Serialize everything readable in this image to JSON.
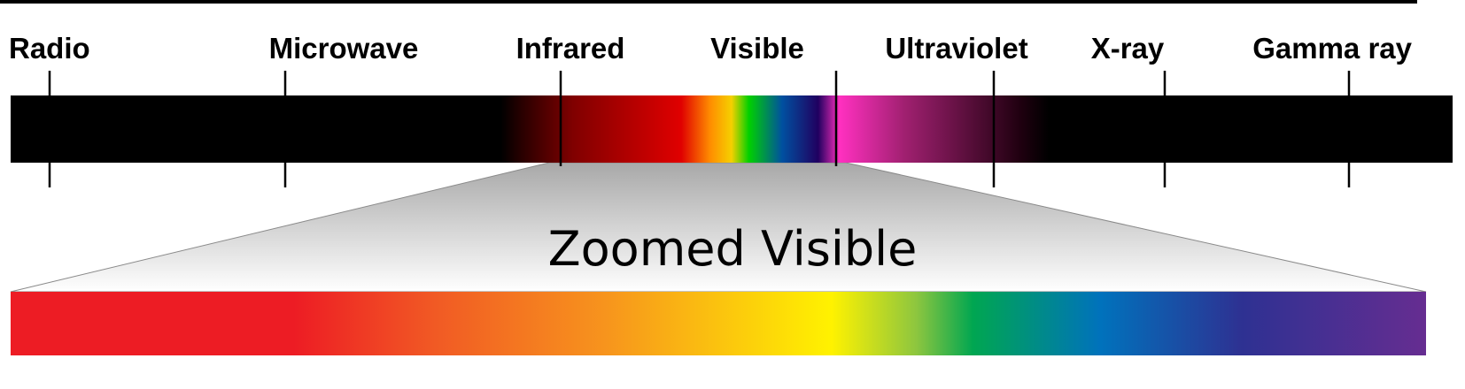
{
  "bands": [
    {
      "label": "Radio"
    },
    {
      "label": "Microwave"
    },
    {
      "label": "Infrared"
    },
    {
      "label": "Visible"
    },
    {
      "label": "Ultraviolet"
    },
    {
      "label": "X-ray"
    },
    {
      "label": "Gamma ray"
    }
  ],
  "zoom_title": "Zoomed Visible",
  "colors": {
    "background": "#ffffff",
    "bar_background": "#000000",
    "visible_spectrum": [
      "#ed1c24",
      "#f15a24",
      "#f7941d",
      "#fff200",
      "#8dc63f",
      "#00a651",
      "#0072bc",
      "#2e3192",
      "#662d91"
    ],
    "ultraviolet": "#ff3fbf",
    "zoom_trapezoid_top": "#b0b0b0",
    "zoom_trapezoid_bottom": "#ffffff"
  }
}
